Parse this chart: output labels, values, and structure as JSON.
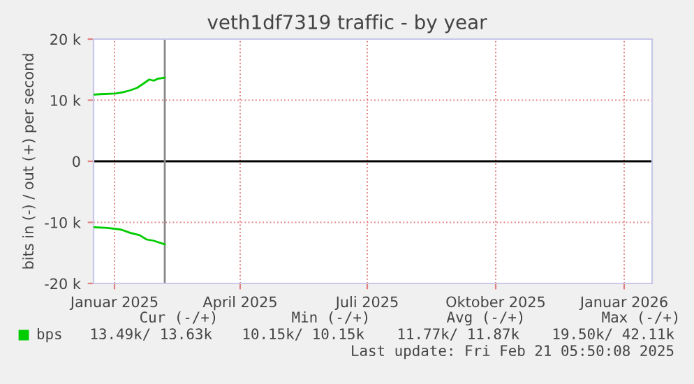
{
  "chart_data": {
    "type": "line",
    "title": "veth1df7319 traffic - by year",
    "ylabel": "bits in (-) / out (+) per second",
    "xlim": [
      "2024-12-17",
      "2026-01-21"
    ],
    "xticks": [
      {
        "value": "2025-01-01",
        "label": "Januar 2025"
      },
      {
        "value": "2025-04-01",
        "label": "April 2025"
      },
      {
        "value": "2025-07-01",
        "label": "Juli 2025"
      },
      {
        "value": "2025-10-01",
        "label": "Oktober 2025"
      },
      {
        "value": "2026-01-01",
        "label": "Januar 2026"
      }
    ],
    "ylim": [
      -20000,
      20000
    ],
    "yticks": [
      {
        "value": -20000,
        "label": "-20 k"
      },
      {
        "value": -10000,
        "label": "-10 k"
      },
      0,
      {
        "value": 10000,
        "label": "10 k"
      },
      {
        "value": 20000,
        "label": "20 k"
      }
    ],
    "series": [
      {
        "name": "bps",
        "color": "#00cc00",
        "x": [
          "2024-12-17",
          "2024-12-22",
          "2025-01-02",
          "2025-01-07",
          "2025-01-12",
          "2025-01-17",
          "2025-01-21",
          "2025-01-26",
          "2025-01-29",
          "2025-02-01",
          "2025-02-06"
        ],
        "values": [
          10900,
          11000,
          11100,
          11300,
          11600,
          12000,
          12600,
          13400,
          13200,
          13500,
          13700
        ]
      },
      {
        "color": "#00cc00",
        "x": [
          "2024-12-17",
          "2024-12-27",
          "2025-01-06",
          "2025-01-12",
          "2025-01-19",
          "2025-01-24",
          "2025-01-29",
          "2025-02-06"
        ],
        "values": [
          -10800,
          -10900,
          -11200,
          -11700,
          -12100,
          -12800,
          -13000,
          -13600
        ]
      }
    ],
    "ref_lines": [
      {
        "axis": "y",
        "value": 0,
        "color": "#000000"
      },
      {
        "axis": "x",
        "value": "2025-02-06",
        "color": "#888888"
      }
    ],
    "grid": true,
    "legend": "bottom left",
    "annotations": [
      "Cur (-/+)",
      "Min (-/+)",
      "Avg (-/+)",
      "Max (-/+)",
      "13.49k/ 13.63k",
      "10.15k/ 10.15k",
      "11.77k/ 11.87k",
      "19.50k/ 42.11k",
      "Last update: Fri Feb 21 05:50:08 2025"
    ]
  }
}
